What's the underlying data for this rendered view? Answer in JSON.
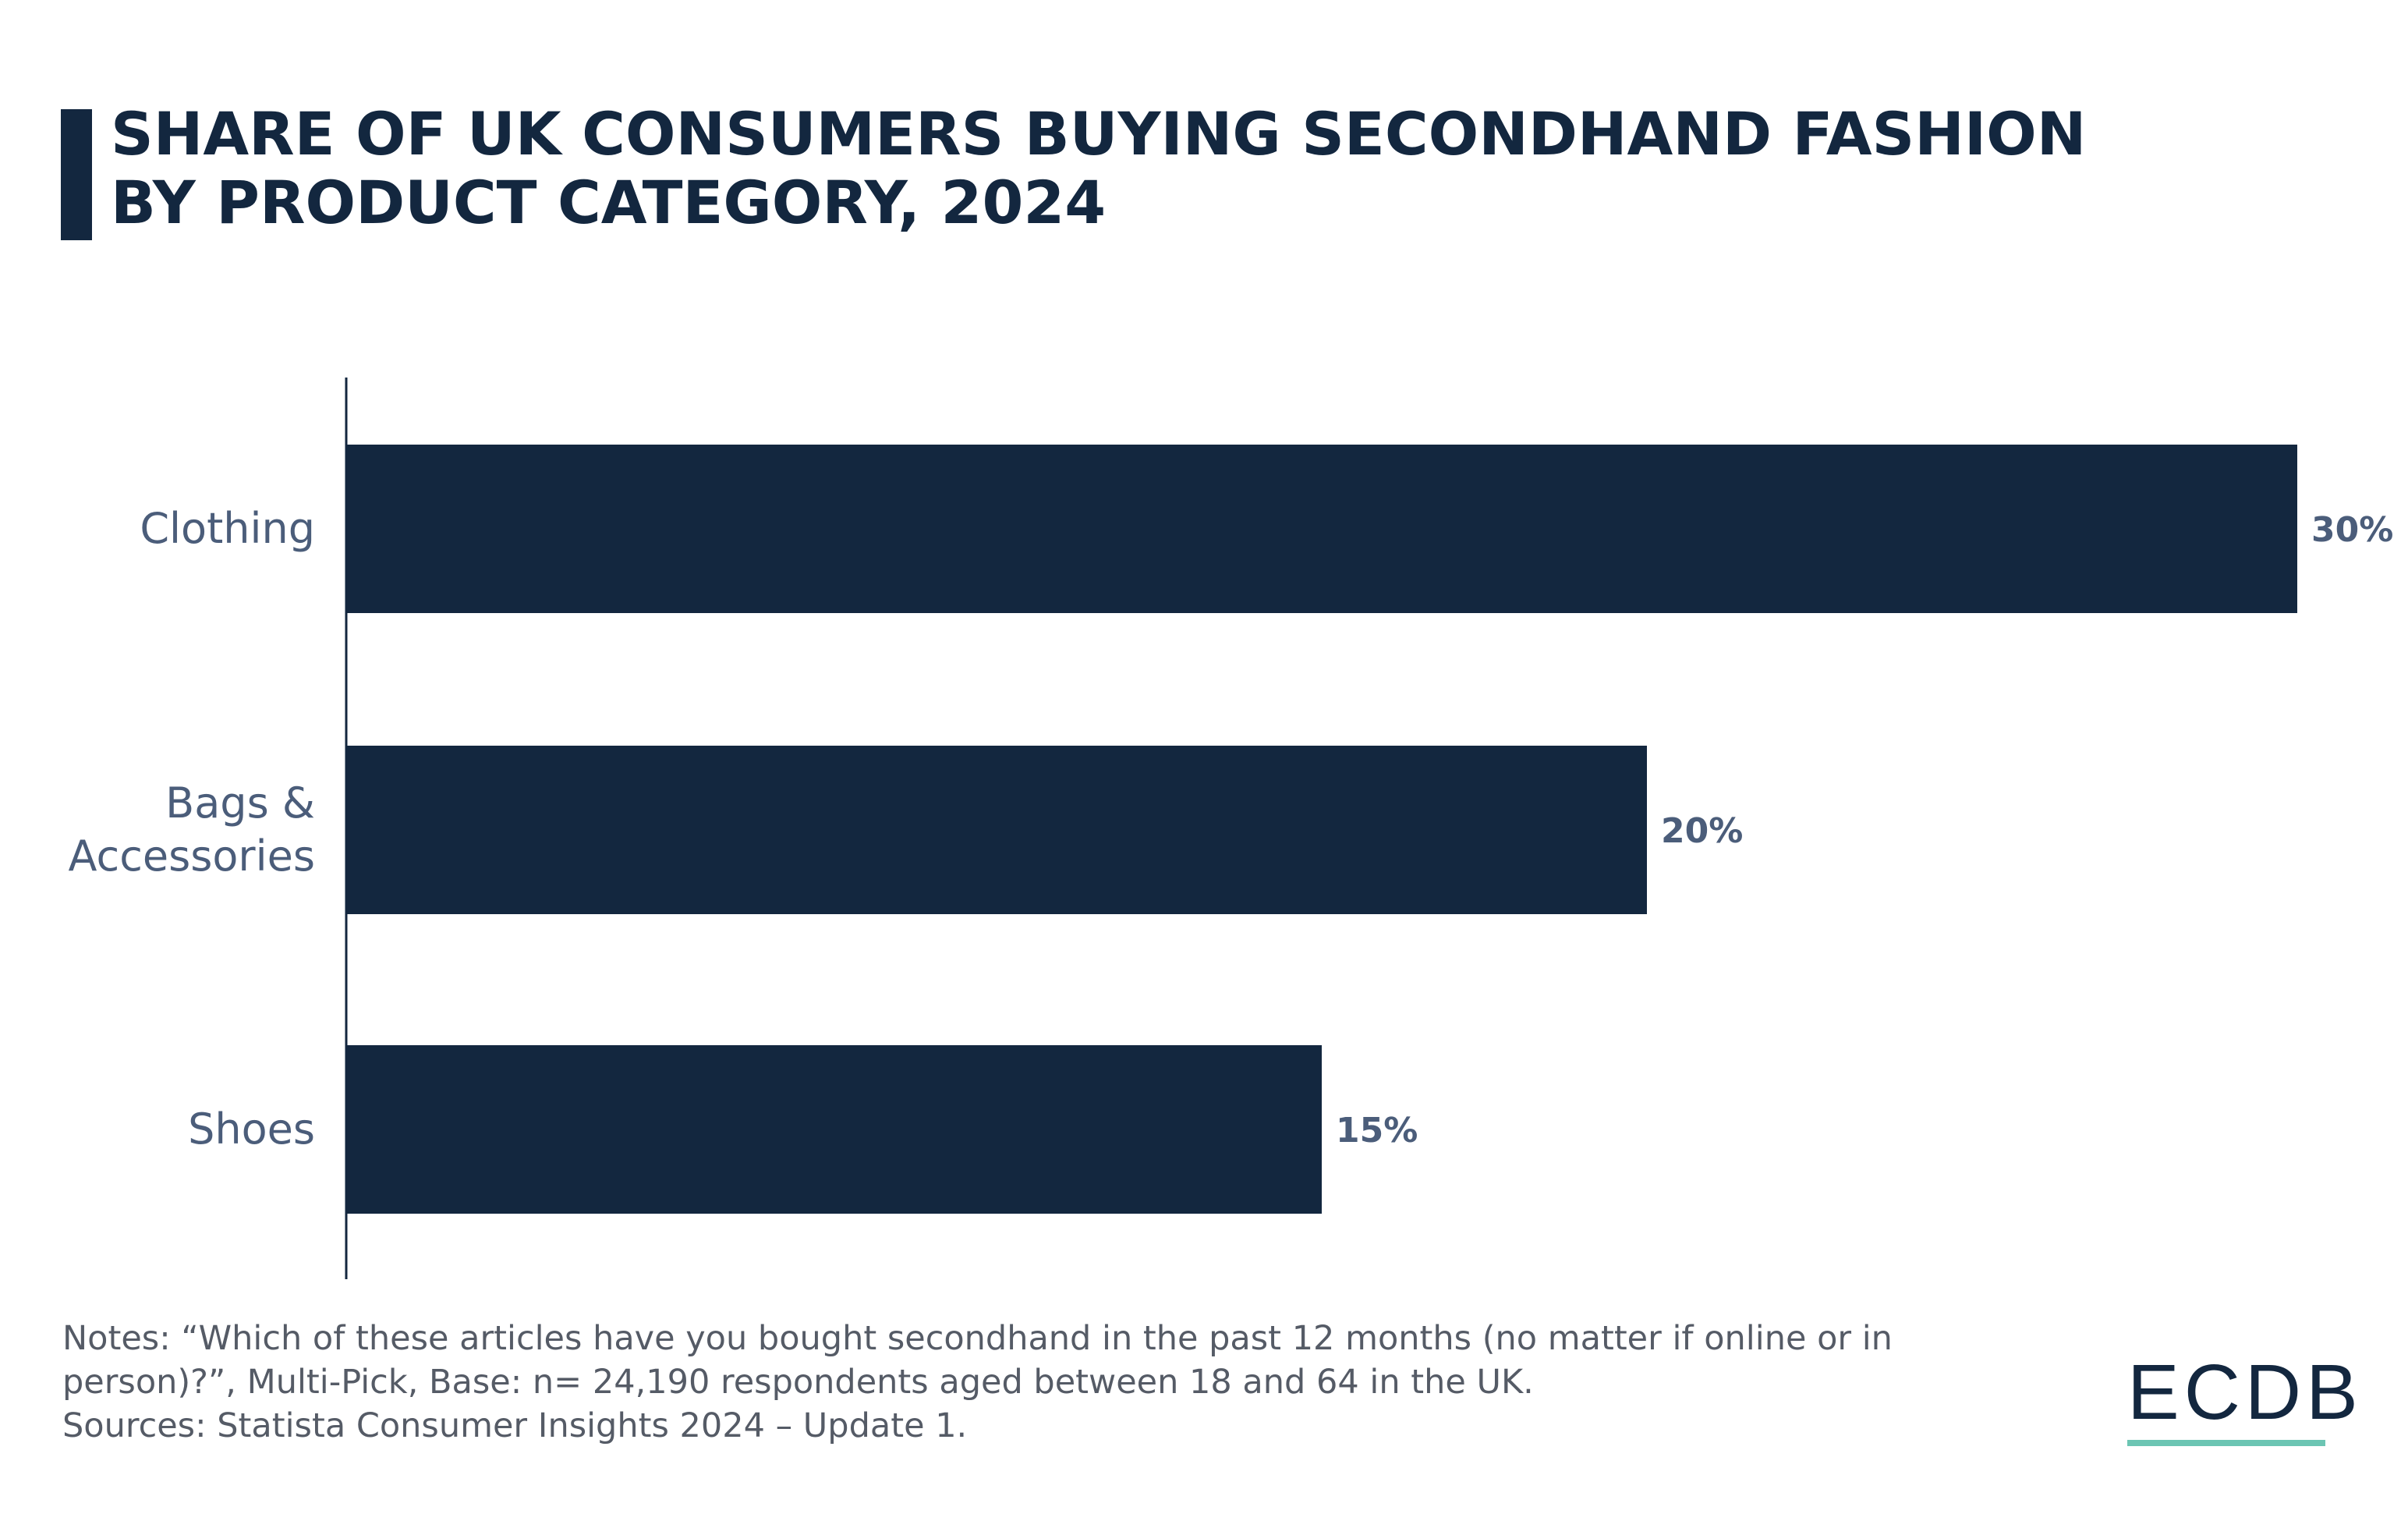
{
  "title_lines": [
    "SHARE OF UK CONSUMERS BUYING SECONDHAND FASHION",
    "BY PRODUCT CATEGORY, 2024"
  ],
  "chart_data": {
    "type": "bar",
    "orientation": "horizontal",
    "title": "SHARE OF UK CONSUMERS BUYING SECONDHAND FASHION BY PRODUCT CATEGORY, 2024",
    "categories": [
      [
        "Clothing"
      ],
      [
        "Bags &",
        "Accessories"
      ],
      [
        "Shoes"
      ]
    ],
    "values": [
      30,
      20,
      15
    ],
    "value_labels": [
      "30%",
      "20%",
      "15%"
    ],
    "unit": "%",
    "xlim": [
      0,
      30
    ],
    "grid": false,
    "bar_color": "#13273f"
  },
  "notes": [
    "Notes: “Which of these articles have you bought secondhand in the past 12 months (no matter if online or in",
    "person)?”, Multi-Pick, Base: n= 24,190 respondents aged between 18 and 64 in the UK.",
    "Sources: Statista Consumer Insights 2024 – Update 1."
  ],
  "logo": {
    "text": "ECDB",
    "accent_color": "#6cc5b3"
  }
}
